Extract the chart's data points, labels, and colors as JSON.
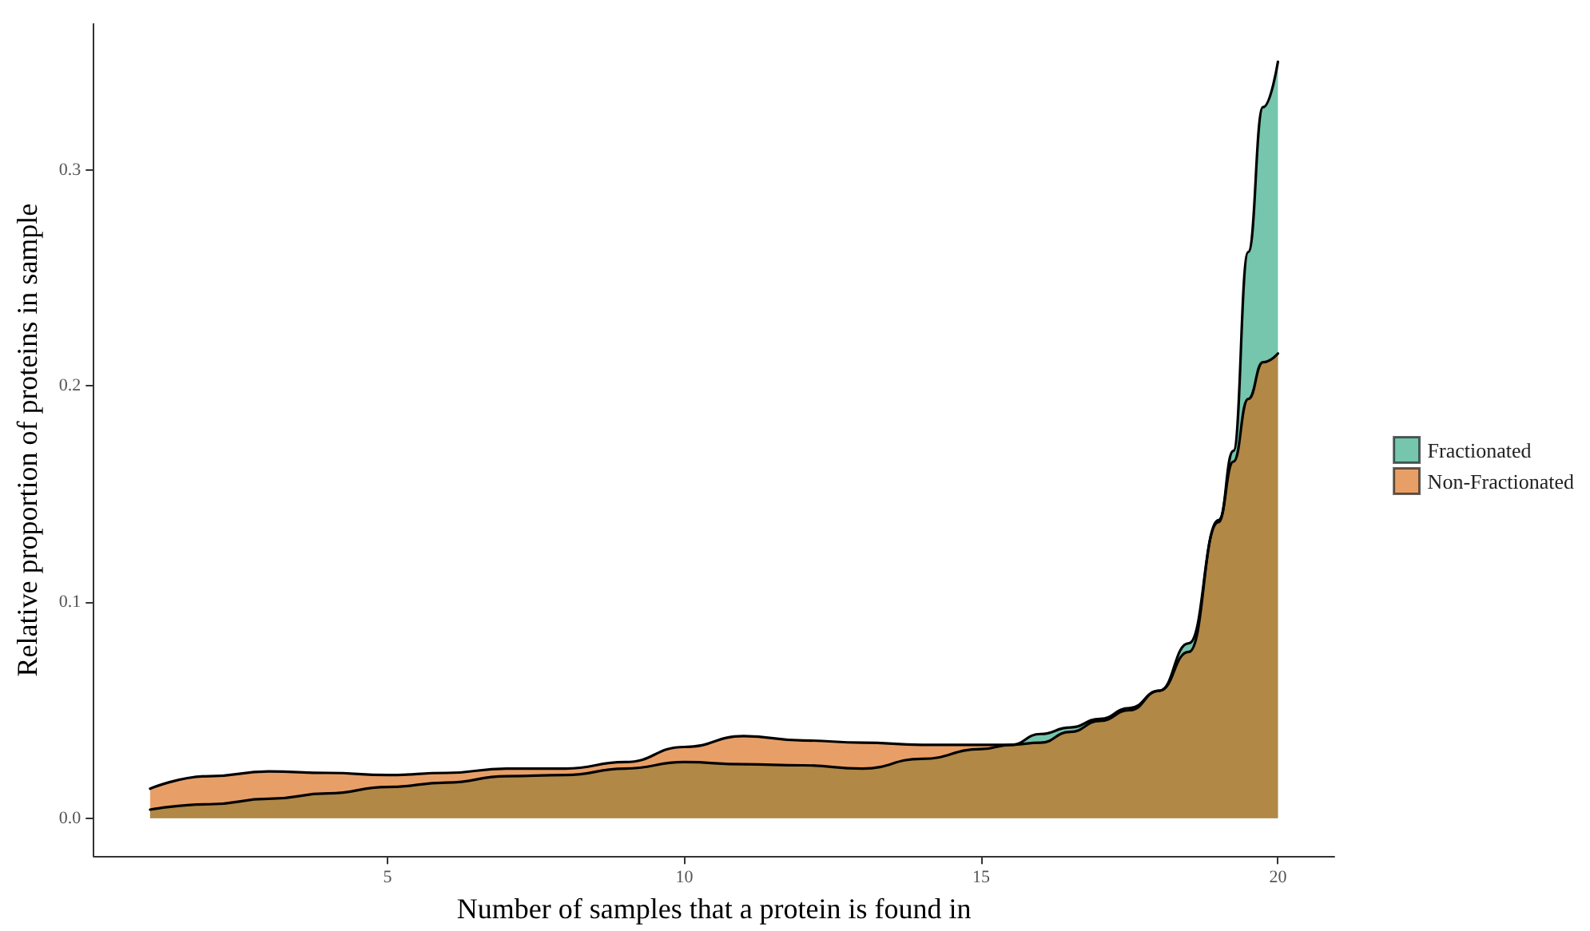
{
  "chart_data": {
    "type": "area",
    "xlabel": "Number of samples that a protein is found in",
    "ylabel": "Relative proportion of proteins in sample",
    "x": [
      1,
      2,
      3,
      4,
      5,
      6,
      7,
      8,
      9,
      10,
      11,
      12,
      13,
      14,
      15,
      15.5,
      16,
      16.5,
      17,
      17.5,
      18,
      18.5,
      19,
      19.25,
      19.5,
      19.75,
      20
    ],
    "series": [
      {
        "name": "Fractionated",
        "color": "#1b9e77",
        "values": [
          0.004,
          0.0065,
          0.009,
          0.0115,
          0.0145,
          0.0165,
          0.0195,
          0.02,
          0.023,
          0.026,
          0.025,
          0.0245,
          0.023,
          0.0275,
          0.032,
          0.034,
          0.039,
          0.042,
          0.046,
          0.051,
          0.059,
          0.081,
          0.137,
          0.17,
          0.262,
          0.329,
          0.35
        ]
      },
      {
        "name": "Non-Fractionated",
        "color": "#d95f02",
        "values": [
          0.0137,
          0.0195,
          0.0217,
          0.021,
          0.02,
          0.021,
          0.023,
          0.023,
          0.026,
          0.033,
          0.038,
          0.036,
          0.035,
          0.034,
          0.034,
          0.034,
          0.035,
          0.04,
          0.045,
          0.05,
          0.059,
          0.077,
          0.138,
          0.165,
          0.194,
          0.211,
          0.215
        ]
      }
    ],
    "xlim": [
      0.05,
      20.95
    ],
    "xticks": [
      5,
      10,
      15,
      20
    ],
    "ylim": [
      -0.0175,
      0.3675
    ],
    "yticks": [
      {
        "value": 0,
        "label": "0.0"
      },
      {
        "value": 0.1,
        "label": "0.1"
      },
      {
        "value": 0.2,
        "label": "0.2"
      },
      {
        "value": 0.3,
        "label": "0.3"
      }
    ],
    "grid": false,
    "legend": "right",
    "marker": "none",
    "line_style": "solid"
  }
}
